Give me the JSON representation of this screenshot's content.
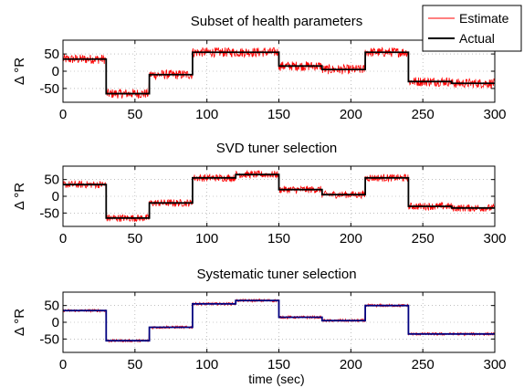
{
  "chart_data": [
    {
      "type": "line",
      "title": "Subset of health parameters",
      "xlabel": "",
      "ylabel": "Δ °R",
      "xlim": [
        0,
        300
      ],
      "ylim": [
        -90,
        90
      ],
      "xticks": [
        "0",
        "50",
        "100",
        "150",
        "200",
        "250",
        "300"
      ],
      "yticks": [
        "50",
        "0",
        "-50"
      ],
      "grid": true,
      "legend": "top-right",
      "noise_amplitude": 14,
      "series": [
        {
          "name": "Estimate",
          "color": "#ff0000",
          "segments": [
            [
              0,
              30,
              35
            ],
            [
              30,
              60,
              -65
            ],
            [
              60,
              90,
              -10
            ],
            [
              90,
              120,
              55
            ],
            [
              120,
              150,
              55
            ],
            [
              150,
              180,
              15
            ],
            [
              180,
              210,
              5
            ],
            [
              210,
              240,
              55
            ],
            [
              240,
              270,
              -30
            ],
            [
              270,
              300,
              -35
            ]
          ]
        },
        {
          "name": "Actual",
          "color": "#000000",
          "segments": [
            [
              0,
              30,
              35
            ],
            [
              30,
              60,
              -65
            ],
            [
              60,
              90,
              -10
            ],
            [
              90,
              120,
              55
            ],
            [
              120,
              150,
              55
            ],
            [
              150,
              180,
              15
            ],
            [
              180,
              210,
              5
            ],
            [
              210,
              240,
              55
            ],
            [
              240,
              270,
              -30
            ],
            [
              270,
              300,
              -35
            ]
          ]
        }
      ]
    },
    {
      "type": "line",
      "title": "SVD tuner selection",
      "xlabel": "",
      "ylabel": "Δ °R",
      "xlim": [
        0,
        300
      ],
      "ylim": [
        -90,
        90
      ],
      "xticks": [
        "0",
        "50",
        "100",
        "150",
        "200",
        "250",
        "300"
      ],
      "yticks": [
        "50",
        "0",
        "-50"
      ],
      "grid": true,
      "noise_amplitude": 11,
      "series": [
        {
          "color": "#ff0000",
          "segments": [
            [
              0,
              30,
              35
            ],
            [
              30,
              60,
              -65
            ],
            [
              60,
              90,
              -20
            ],
            [
              90,
              120,
              55
            ],
            [
              120,
              150,
              65
            ],
            [
              150,
              180,
              20
            ],
            [
              180,
              210,
              5
            ],
            [
              210,
              240,
              55
            ],
            [
              240,
              270,
              -30
            ],
            [
              270,
              300,
              -35
            ]
          ]
        },
        {
          "color": "#000000",
          "segments": [
            [
              0,
              30,
              35
            ],
            [
              30,
              60,
              -65
            ],
            [
              60,
              90,
              -20
            ],
            [
              90,
              120,
              55
            ],
            [
              120,
              150,
              65
            ],
            [
              150,
              180,
              20
            ],
            [
              180,
              210,
              5
            ],
            [
              210,
              240,
              55
            ],
            [
              240,
              270,
              -30
            ],
            [
              270,
              300,
              -35
            ]
          ]
        }
      ]
    },
    {
      "type": "line",
      "title": "Systematic tuner selection",
      "xlabel": "time (sec)",
      "ylabel": "Δ °R",
      "xlim": [
        0,
        300
      ],
      "ylim": [
        -90,
        90
      ],
      "xticks": [
        "0",
        "50",
        "100",
        "150",
        "200",
        "250",
        "300"
      ],
      "yticks": [
        "50",
        "0",
        "-50"
      ],
      "grid": true,
      "noise_amplitude": 4,
      "series": [
        {
          "color": "#ff0000",
          "segments": [
            [
              0,
              30,
              35
            ],
            [
              30,
              60,
              -55
            ],
            [
              60,
              90,
              -15
            ],
            [
              90,
              120,
              55
            ],
            [
              120,
              150,
              65
            ],
            [
              150,
              180,
              15
            ],
            [
              180,
              210,
              5
            ],
            [
              210,
              240,
              50
            ],
            [
              240,
              270,
              -35
            ],
            [
              270,
              300,
              -35
            ]
          ]
        },
        {
          "color": "#000080",
          "segments": [
            [
              0,
              30,
              35
            ],
            [
              30,
              60,
              -55
            ],
            [
              60,
              90,
              -15
            ],
            [
              90,
              120,
              55
            ],
            [
              120,
              150,
              65
            ],
            [
              150,
              180,
              15
            ],
            [
              180,
              210,
              5
            ],
            [
              210,
              240,
              50
            ],
            [
              240,
              270,
              -35
            ],
            [
              270,
              300,
              -35
            ]
          ]
        }
      ]
    }
  ]
}
